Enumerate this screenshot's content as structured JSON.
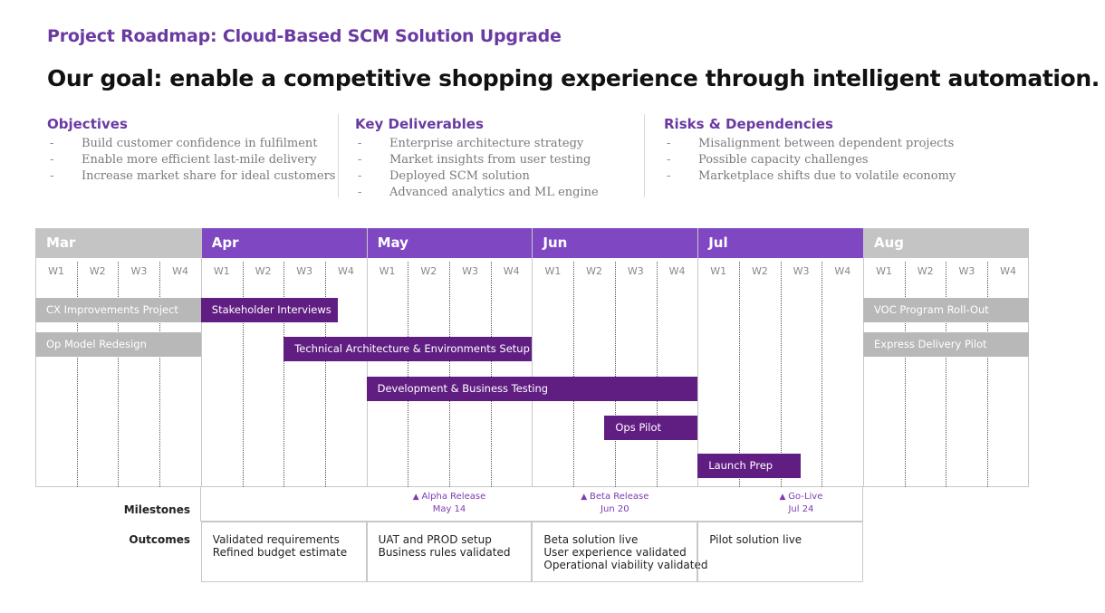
{
  "header": {
    "title": "Project Roadmap: Cloud-Based SCM Solution Upgrade",
    "goal": "Our goal: enable a competitive shopping experience through intelligent automation."
  },
  "columns": [
    {
      "heading": "Objectives",
      "items": [
        "Build customer confidence in fulfilment",
        "Enable more efficient last-mile delivery",
        "Increase market share for ideal customers"
      ]
    },
    {
      "heading": "Key Deliverables",
      "items": [
        "Enterprise architecture strategy",
        "Market insights from user testing",
        "Deployed SCM solution",
        "Advanced analytics and ML engine"
      ]
    },
    {
      "heading": "Risks & Dependencies",
      "items": [
        "Misalignment between dependent projects",
        "Possible capacity challenges",
        "Marketplace shifts due to volatile economy"
      ]
    }
  ],
  "bullet": "-",
  "timeline": {
    "months": [
      {
        "label": "Mar",
        "active": false
      },
      {
        "label": "Apr",
        "active": true
      },
      {
        "label": "May",
        "active": true
      },
      {
        "label": "Jun",
        "active": true
      },
      {
        "label": "Jul",
        "active": true
      },
      {
        "label": "Aug",
        "active": false
      }
    ],
    "weeks": [
      "W1",
      "W2",
      "W3",
      "W4"
    ],
    "tasks": [
      {
        "label": "CX Improvements Project",
        "style": "grey",
        "start_week": 0,
        "end_week": 4
      },
      {
        "label": "Op Model Redesign",
        "style": "grey",
        "start_week": 0,
        "end_week": 4
      },
      {
        "label": "VOC Program Roll-Out",
        "style": "grey",
        "start_week": 20,
        "end_week": 24
      },
      {
        "label": "Express Delivery Pilot",
        "style": "grey",
        "start_week": 20,
        "end_week": 24
      },
      {
        "label": "Stakeholder Interviews",
        "style": "dark",
        "start_week": 4,
        "end_week": 7.3
      },
      {
        "label": "Technical Architecture & Environments Setup",
        "style": "dark",
        "start_week": 6,
        "end_week": 12
      },
      {
        "label": "Development & Business Testing",
        "style": "dark",
        "start_week": 8,
        "end_week": 16
      },
      {
        "label": "Ops Pilot",
        "style": "dark",
        "start_week": 13.75,
        "end_week": 16
      },
      {
        "label": "Launch Prep",
        "style": "dark",
        "start_week": 16,
        "end_week": 18.5
      }
    ],
    "milestones_label": "Milestones",
    "milestones": [
      {
        "name": "Alpha Release",
        "date": "May 14",
        "week": 10
      },
      {
        "name": "Beta Release",
        "date": "Jun 20",
        "week": 14
      },
      {
        "name": "Go-Live",
        "date": "Jul 24",
        "week": 18.5
      }
    ],
    "outcomes_label": "Outcomes",
    "outcomes": [
      [
        "Validated requirements",
        "Refined budget estimate"
      ],
      [
        "UAT and PROD setup",
        "Business rules validated"
      ],
      [
        "Beta solution live",
        "User experience validated",
        "Operational viability validated"
      ],
      [
        "Pilot solution live"
      ]
    ]
  },
  "colors": {
    "accent": "#6a3aa2",
    "month_active": "#7f47c1",
    "month_inactive": "#c4c4c4",
    "bar_dark": "#611e82",
    "bar_grey": "#b8b8b8",
    "milestone": "#7f3ab0"
  }
}
